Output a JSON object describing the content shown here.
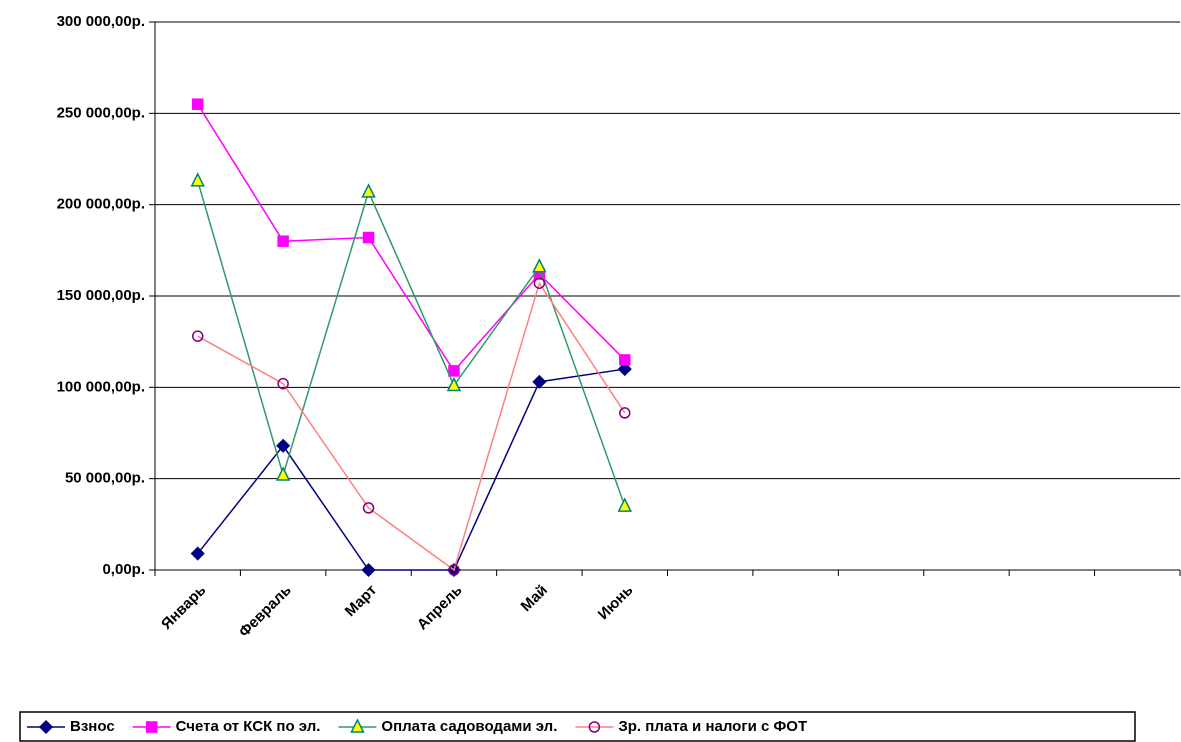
{
  "chart_data": {
    "type": "line",
    "categories": [
      "Январь",
      "Февраль",
      "Март",
      "Апрель",
      "Май",
      "Июнь",
      null,
      null,
      null,
      null,
      null,
      null
    ],
    "series": [
      {
        "name": "Взнос",
        "color": "#000080",
        "marker": "diamond",
        "marker_color": "#000080",
        "marker_fill": "#000080",
        "values": [
          9000,
          68000,
          0,
          0,
          103000,
          110000,
          null,
          null,
          null,
          null,
          null,
          null
        ]
      },
      {
        "name": "Счета от КСК по эл.",
        "color": "#ff00ff",
        "marker": "square",
        "marker_color": "#ff00ff",
        "marker_fill": "#ff00ff",
        "values": [
          255000,
          180000,
          182000,
          109000,
          162000,
          115000,
          null,
          null,
          null,
          null,
          null,
          null
        ]
      },
      {
        "name": "Оплата садоводами эл.",
        "color": "#339966",
        "marker": "triangle",
        "marker_color": "#008080",
        "marker_fill": "#ffff00",
        "values": [
          213000,
          52000,
          207000,
          101000,
          166000,
          35000,
          null,
          null,
          null,
          null,
          null,
          null
        ]
      },
      {
        "name": "Зр. плата и налоги с ФОТ",
        "color": "#ff8080",
        "marker": "circle",
        "marker_color": "#800080",
        "marker_fill": "none",
        "values": [
          128000,
          102000,
          34000,
          0,
          157000,
          86000,
          null,
          null,
          null,
          null,
          null,
          null
        ]
      }
    ],
    "ylim": [
      0,
      300000
    ],
    "yticks": [
      {
        "value": 0,
        "label": "0,00р."
      },
      {
        "value": 50000,
        "label": "50 000,00р."
      },
      {
        "value": 100000,
        "label": "100 000,00р."
      },
      {
        "value": 150000,
        "label": "150 000,00р."
      },
      {
        "value": 200000,
        "label": "200 000,00р."
      },
      {
        "value": 250000,
        "label": "250 000,00р."
      },
      {
        "value": 300000,
        "label": "300 000,00р."
      }
    ],
    "grid": true,
    "legend": "bottom"
  }
}
